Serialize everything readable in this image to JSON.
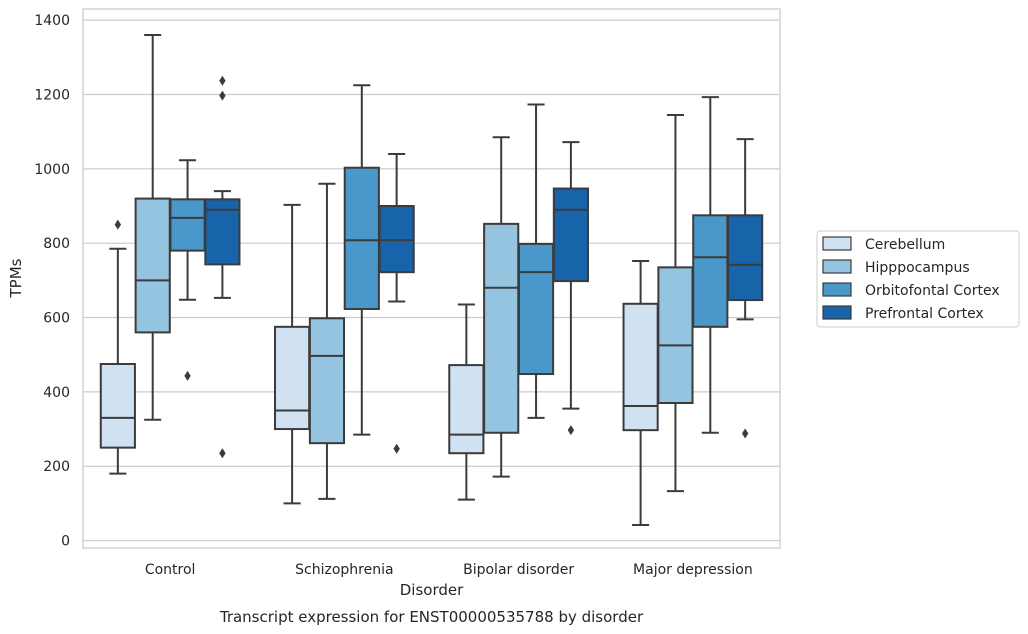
{
  "caption": "Transcript expression for ENST00000535788 by disorder",
  "chart_data": {
    "type": "boxplot",
    "xlabel": "Disorder",
    "ylabel": "TPMs",
    "ylim": [
      -20,
      1430
    ],
    "yticks": [
      0,
      200,
      400,
      600,
      800,
      1000,
      1200,
      1400
    ],
    "grid": "horizontal",
    "legend_position": "right",
    "categories": [
      "Control",
      "Schizophrenia",
      "Bipolar disorder",
      "Major depression"
    ],
    "series": [
      {
        "name": "Cerebellum",
        "color": "#d0e1f2",
        "boxes": [
          {
            "whislo": 180,
            "q1": 250,
            "med": 330,
            "q3": 475,
            "whishi": 785,
            "fliers": [
              850
            ]
          },
          {
            "whislo": 100,
            "q1": 300,
            "med": 350,
            "q3": 575,
            "whishi": 903,
            "fliers": []
          },
          {
            "whislo": 110,
            "q1": 235,
            "med": 285,
            "q3": 472,
            "whishi": 635,
            "fliers": []
          },
          {
            "whislo": 42,
            "q1": 297,
            "med": 362,
            "q3": 637,
            "whishi": 752,
            "fliers": []
          }
        ]
      },
      {
        "name": "Hipppocampus",
        "color": "#94c4df",
        "boxes": [
          {
            "whislo": 325,
            "q1": 560,
            "med": 700,
            "q3": 920,
            "whishi": 1360,
            "fliers": []
          },
          {
            "whislo": 112,
            "q1": 262,
            "med": 497,
            "q3": 598,
            "whishi": 960,
            "fliers": []
          },
          {
            "whislo": 172,
            "q1": 290,
            "med": 680,
            "q3": 852,
            "whishi": 1085,
            "fliers": []
          },
          {
            "whislo": 133,
            "q1": 370,
            "med": 525,
            "q3": 735,
            "whishi": 1145,
            "fliers": []
          }
        ]
      },
      {
        "name": "Orbitofontal Cortex",
        "color": "#4a98c9",
        "boxes": [
          {
            "whislo": 648,
            "q1": 780,
            "med": 868,
            "q3": 918,
            "whishi": 1023,
            "fliers": [
              443
            ]
          },
          {
            "whislo": 285,
            "q1": 623,
            "med": 808,
            "q3": 1003,
            "whishi": 1225,
            "fliers": []
          },
          {
            "whislo": 330,
            "q1": 448,
            "med": 722,
            "q3": 798,
            "whishi": 1173,
            "fliers": []
          },
          {
            "whislo": 290,
            "q1": 575,
            "med": 762,
            "q3": 875,
            "whishi": 1193,
            "fliers": []
          }
        ]
      },
      {
        "name": "Prefrontal Cortex",
        "color": "#1764ab",
        "boxes": [
          {
            "whislo": 653,
            "q1": 743,
            "med": 890,
            "q3": 918,
            "whishi": 940,
            "fliers": [
              1237,
              1197,
              235
            ]
          },
          {
            "whislo": 643,
            "q1": 722,
            "med": 808,
            "q3": 900,
            "whishi": 1040,
            "fliers": [
              247
            ]
          },
          {
            "whislo": 355,
            "q1": 698,
            "med": 890,
            "q3": 947,
            "whishi": 1072,
            "fliers": [
              297
            ]
          },
          {
            "whislo": 595,
            "q1": 647,
            "med": 742,
            "q3": 875,
            "whishi": 1080,
            "fliers": [
              288
            ]
          }
        ]
      }
    ]
  }
}
